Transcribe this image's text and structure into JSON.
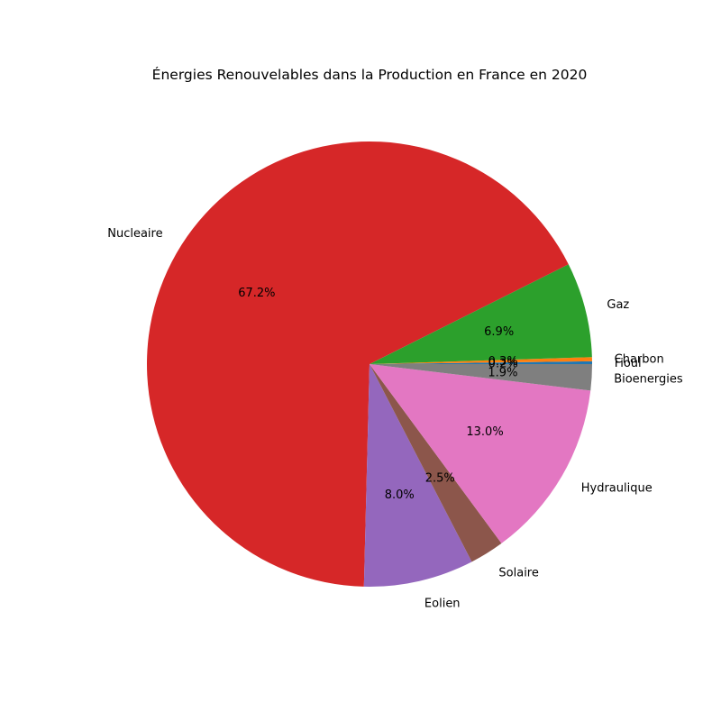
{
  "chart_data": {
    "type": "pie",
    "title": "Énergies Renouvelables dans la Production en France en 2020",
    "start_angle_deg": 0,
    "direction": "counterclockwise",
    "slices": [
      {
        "label": "Fioul",
        "pct_label": "0.2%",
        "value": 0.2,
        "color": "#1f77b4"
      },
      {
        "label": "Charbon",
        "pct_label": "0.3%",
        "value": 0.3,
        "color": "#ff7f0e"
      },
      {
        "label": "Gaz",
        "pct_label": "6.9%",
        "value": 6.9,
        "color": "#2ca02c"
      },
      {
        "label": "Nucleaire",
        "pct_label": "67.2%",
        "value": 67.2,
        "color": "#d62728"
      },
      {
        "label": "Eolien",
        "pct_label": "8.0%",
        "value": 8.0,
        "color": "#9467bd"
      },
      {
        "label": "Solaire",
        "pct_label": "2.5%",
        "value": 2.5,
        "color": "#8c564b"
      },
      {
        "label": "Hydraulique",
        "pct_label": "13.0%",
        "value": 13.0,
        "color": "#e377c2"
      },
      {
        "label": "Bioenergies",
        "pct_label": "1.9%",
        "value": 1.9,
        "color": "#7f7f7f"
      }
    ]
  }
}
